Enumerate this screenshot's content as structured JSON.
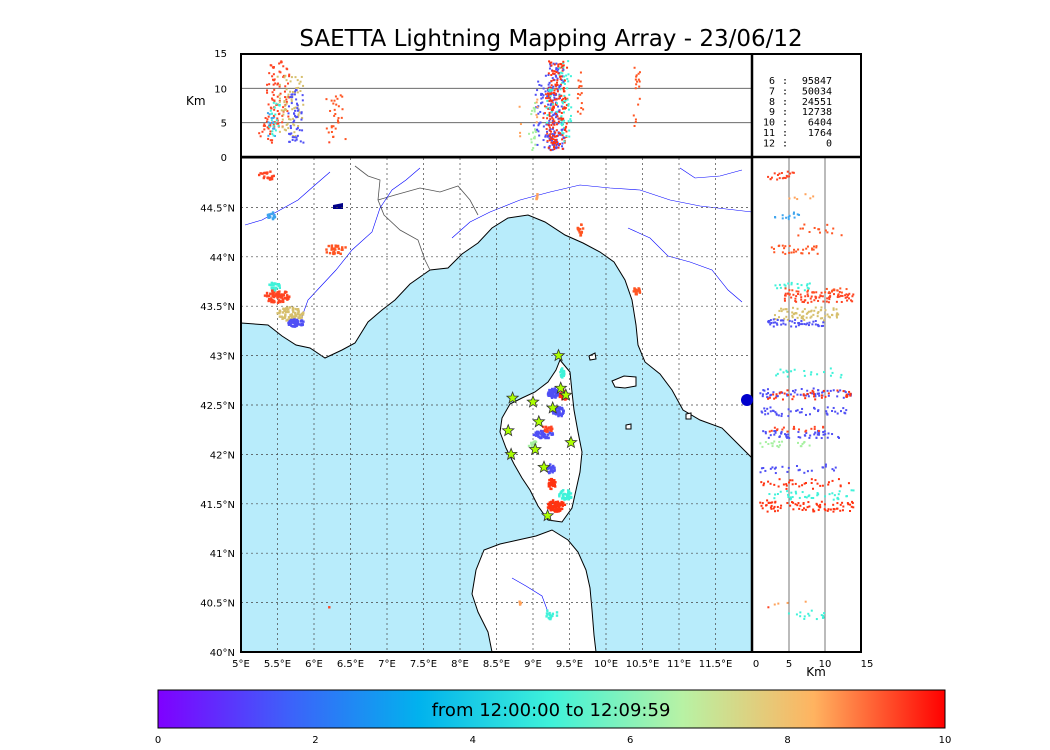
{
  "chart_data": {
    "type": "scatter",
    "title": "SAETTA Lightning Mapping Array - 23/06/12",
    "colors": {
      "sea": "#b8ecfb",
      "river": "#0000ff",
      "coast": "#000000",
      "border": "#444444",
      "station_fill": "#aaff00",
      "station_stroke": "#333333",
      "marker": "#0000cc"
    },
    "map": {
      "lon_range": [
        5,
        12
      ],
      "lat_range": [
        40,
        45
      ],
      "lon_ticks": [
        "5°E",
        "5.5°E",
        "6°E",
        "6.5°E",
        "7°E",
        "7.5°E",
        "8°E",
        "8.5°E",
        "9°E",
        "9.5°E",
        "10°E",
        "10.5°E",
        "11°E",
        "11.5°E"
      ],
      "lat_ticks": [
        "40°N",
        "40.5°N",
        "41°N",
        "41.5°N",
        "42°N",
        "42.5°N",
        "43°N",
        "43.5°N",
        "44°N",
        "44.5°N"
      ]
    },
    "altitude_axis": {
      "label": "Km",
      "range": [
        0,
        15
      ],
      "ticks": [
        "0",
        "5",
        "10",
        "15"
      ]
    },
    "counts": [
      {
        "label": "6",
        "value": "95847",
        "highlight": false
      },
      {
        "label": "7",
        "value": "50034",
        "highlight": true
      },
      {
        "label": "8",
        "value": "24551",
        "highlight": false
      },
      {
        "label": "9",
        "value": "12738",
        "highlight": false
      },
      {
        "label": "10",
        "value": "6404",
        "highlight": false
      },
      {
        "label": "11",
        "value": "1764",
        "highlight": false
      },
      {
        "label": "12",
        "value": "0",
        "highlight": false
      }
    ],
    "colorbar": {
      "range": [
        0,
        10
      ],
      "ticks": [
        "0",
        "2",
        "4",
        "6",
        "8",
        "10"
      ],
      "text": "from 12:00:00 to 12:09:59",
      "stops": [
        "#7f00ff",
        "#3d61fa",
        "#01b3ed",
        "#3ff2d9",
        "#b8f2a4",
        "#ffb360",
        "#ff0000"
      ]
    },
    "stations": [
      {
        "lon": 9.35,
        "lat": 43.0
      },
      {
        "lon": 9.45,
        "lat": 42.6
      },
      {
        "lon": 9.38,
        "lat": 42.67
      },
      {
        "lon": 8.72,
        "lat": 42.57
      },
      {
        "lon": 9.0,
        "lat": 42.53
      },
      {
        "lon": 9.27,
        "lat": 42.47
      },
      {
        "lon": 8.66,
        "lat": 42.24
      },
      {
        "lon": 9.08,
        "lat": 42.33
      },
      {
        "lon": 9.52,
        "lat": 42.12
      },
      {
        "lon": 8.7,
        "lat": 42.0
      },
      {
        "lon": 9.03,
        "lat": 42.05
      },
      {
        "lon": 9.15,
        "lat": 41.87
      },
      {
        "lon": 9.2,
        "lat": 41.38
      }
    ],
    "cells": [
      {
        "lon": 5.35,
        "lat": 44.82,
        "rx": 0.12,
        "ry": 0.05,
        "c": "#ff4422",
        "n": 20,
        "alt": [
          2,
          6
        ]
      },
      {
        "lon": 5.42,
        "lat": 44.42,
        "rx": 0.07,
        "ry": 0.04,
        "c": "#3fa5ee",
        "n": 14,
        "alt": [
          3,
          7
        ]
      },
      {
        "lon": 6.3,
        "lat": 44.07,
        "rx": 0.16,
        "ry": 0.05,
        "c": "#ff5522",
        "n": 30,
        "alt": [
          2,
          9
        ]
      },
      {
        "lon": 5.5,
        "lat": 43.6,
        "rx": 0.18,
        "ry": 0.07,
        "c": "#ff4422",
        "n": 80,
        "alt": [
          4,
          14
        ]
      },
      {
        "lon": 5.68,
        "lat": 43.42,
        "rx": 0.18,
        "ry": 0.07,
        "c": "#d6bf6c",
        "n": 70,
        "alt": [
          3,
          12
        ]
      },
      {
        "lon": 5.75,
        "lat": 43.33,
        "rx": 0.12,
        "ry": 0.04,
        "c": "#4f4ff5",
        "n": 50,
        "alt": [
          2,
          10
        ]
      },
      {
        "lon": 5.45,
        "lat": 43.7,
        "rx": 0.1,
        "ry": 0.04,
        "c": "#3ff2d9",
        "n": 20,
        "alt": [
          3,
          8
        ]
      },
      {
        "lon": 9.4,
        "lat": 42.82,
        "rx": 0.03,
        "ry": 0.05,
        "c": "#3ff2d9",
        "n": 20,
        "alt": [
          3,
          13
        ]
      },
      {
        "lon": 9.28,
        "lat": 42.62,
        "rx": 0.08,
        "ry": 0.05,
        "c": "#4f4ff5",
        "n": 60,
        "alt": [
          1,
          14
        ]
      },
      {
        "lon": 9.42,
        "lat": 42.6,
        "rx": 0.06,
        "ry": 0.05,
        "c": "#ff3311",
        "n": 40,
        "alt": [
          2,
          14
        ]
      },
      {
        "lon": 9.35,
        "lat": 42.43,
        "rx": 0.08,
        "ry": 0.05,
        "c": "#4f4ff5",
        "n": 45,
        "alt": [
          1,
          13
        ]
      },
      {
        "lon": 9.15,
        "lat": 42.2,
        "rx": 0.14,
        "ry": 0.04,
        "c": "#4f4ff5",
        "n": 50,
        "alt": [
          1,
          12
        ]
      },
      {
        "lon": 9.0,
        "lat": 42.1,
        "rx": 0.06,
        "ry": 0.04,
        "c": "#a6f0a0",
        "n": 20,
        "alt": [
          1,
          8
        ]
      },
      {
        "lon": 9.2,
        "lat": 42.26,
        "rx": 0.08,
        "ry": 0.03,
        "c": "#ff4422",
        "n": 20,
        "alt": [
          2,
          10
        ]
      },
      {
        "lon": 9.25,
        "lat": 41.85,
        "rx": 0.05,
        "ry": 0.05,
        "c": "#4f4ff5",
        "n": 25,
        "alt": [
          1,
          12
        ]
      },
      {
        "lon": 9.26,
        "lat": 41.7,
        "rx": 0.05,
        "ry": 0.06,
        "c": "#ff3311",
        "n": 35,
        "alt": [
          1,
          14
        ]
      },
      {
        "lon": 9.45,
        "lat": 41.6,
        "rx": 0.1,
        "ry": 0.06,
        "c": "#3ff2d9",
        "n": 40,
        "alt": [
          2,
          14
        ]
      },
      {
        "lon": 9.32,
        "lat": 41.48,
        "rx": 0.12,
        "ry": 0.06,
        "c": "#ff3311",
        "n": 80,
        "alt": [
          1,
          14
        ]
      },
      {
        "lon": 10.42,
        "lat": 43.65,
        "rx": 0.05,
        "ry": 0.04,
        "c": "#ff5522",
        "n": 18,
        "alt": [
          3,
          13
        ]
      },
      {
        "lon": 9.65,
        "lat": 44.27,
        "rx": 0.04,
        "ry": 0.06,
        "c": "#ff5522",
        "n": 15,
        "alt": [
          6,
          14
        ]
      },
      {
        "lon": 9.05,
        "lat": 44.6,
        "rx": 0.02,
        "ry": 0.04,
        "c": "#ffa25a",
        "n": 6,
        "alt": [
          5,
          10
        ]
      },
      {
        "lon": 9.25,
        "lat": 40.38,
        "rx": 0.1,
        "ry": 0.05,
        "c": "#3ff2d9",
        "n": 15,
        "alt": [
          4,
          10
        ]
      },
      {
        "lon": 8.82,
        "lat": 40.5,
        "rx": 0.02,
        "ry": 0.02,
        "c": "#ffa25a",
        "n": 4,
        "alt": [
          3,
          8
        ]
      },
      {
        "lon": 6.2,
        "lat": 40.45,
        "rx": 0.01,
        "ry": 0.01,
        "c": "#ff4422",
        "n": 1,
        "alt": [
          2,
          3
        ]
      }
    ]
  }
}
